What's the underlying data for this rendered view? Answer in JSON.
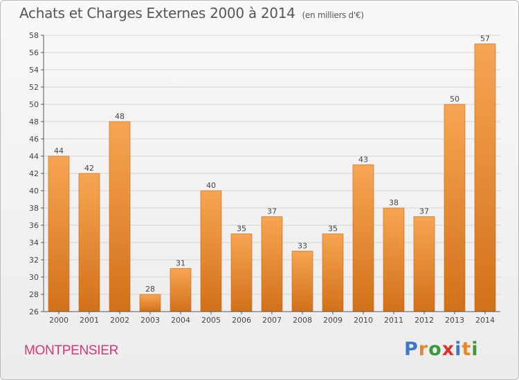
{
  "header": {
    "title": "Achats et Charges Externes 2000 à 2014",
    "subtitle": "(en milliers d'€)"
  },
  "footer": {
    "commune": "MONTPENSIER",
    "logo": "Proxiti",
    "logo_letters": [
      {
        "char": "P",
        "color": "#3a78c8"
      },
      {
        "char": "r",
        "color": "#e8862a"
      },
      {
        "char": "o",
        "color": "#3a9a3a"
      },
      {
        "char": "x",
        "color": "#d9342b"
      },
      {
        "char": "i",
        "color": "#3a78c8"
      },
      {
        "char": "t",
        "color": "#e8862a"
      },
      {
        "char": "i",
        "color": "#3a9a3a"
      }
    ]
  },
  "chart_data": {
    "type": "bar",
    "categories": [
      "2000",
      "2001",
      "2002",
      "2003",
      "2004",
      "2005",
      "2006",
      "2007",
      "2008",
      "2009",
      "2010",
      "2011",
      "2012",
      "2013",
      "2014"
    ],
    "values": [
      44,
      42,
      48,
      28,
      31,
      40,
      35,
      37,
      33,
      35,
      43,
      38,
      37,
      50,
      57
    ],
    "ylim": [
      26,
      58
    ],
    "yticks": [
      26,
      28,
      30,
      32,
      34,
      36,
      38,
      40,
      42,
      44,
      46,
      48,
      50,
      52,
      54,
      56,
      58
    ],
    "grid": true,
    "colors": {
      "bar_top": "#f7a553",
      "bar_bottom": "#d2701a",
      "bar_edge": "#c46412",
      "grid": "#d4d4d4",
      "axis": "#555555",
      "label": "#444444"
    }
  }
}
